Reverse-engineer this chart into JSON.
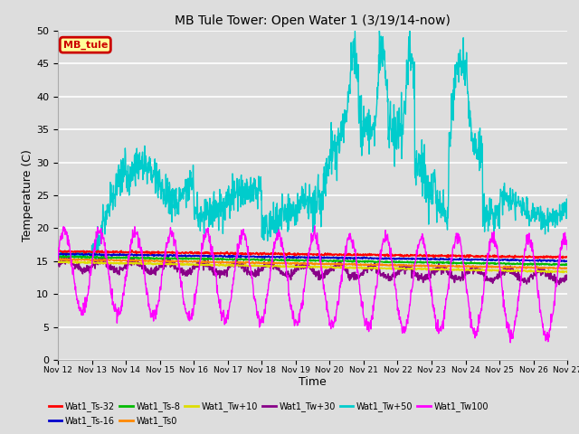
{
  "title": "MB Tule Tower: Open Water 1 (3/19/14-now)",
  "xlabel": "Time",
  "ylabel": "Temperature (C)",
  "ylim": [
    0,
    50
  ],
  "x_tick_labels": [
    "Nov 12",
    "Nov 13",
    "Nov 14",
    "Nov 15",
    "Nov 16",
    "Nov 17",
    "Nov 18",
    "Nov 19",
    "Nov 20",
    "Nov 21",
    "Nov 22",
    "Nov 23",
    "Nov 24",
    "Nov 25",
    "Nov 26",
    "Nov 27"
  ],
  "series": {
    "Wat1_Ts-32": {
      "color": "#ff0000",
      "lw": 1.2
    },
    "Wat1_Ts-16": {
      "color": "#0000cc",
      "lw": 1.2
    },
    "Wat1_Ts-8": {
      "color": "#00bb00",
      "lw": 1.2
    },
    "Wat1_Ts0": {
      "color": "#ff8800",
      "lw": 1.2
    },
    "Wat1_Tw+10": {
      "color": "#dddd00",
      "lw": 1.2
    },
    "Wat1_Tw+30": {
      "color": "#880088",
      "lw": 1.2
    },
    "Wat1_Tw+50": {
      "color": "#00cccc",
      "lw": 1.0
    },
    "Wat1_Tw100": {
      "color": "#ff00ff",
      "lw": 1.0
    }
  },
  "legend_box_color": "#ffff99",
  "legend_box_edge": "#cc0000",
  "legend_box_text": "MB_tule",
  "bg_color": "#dddddd",
  "grid_color": "#ffffff"
}
